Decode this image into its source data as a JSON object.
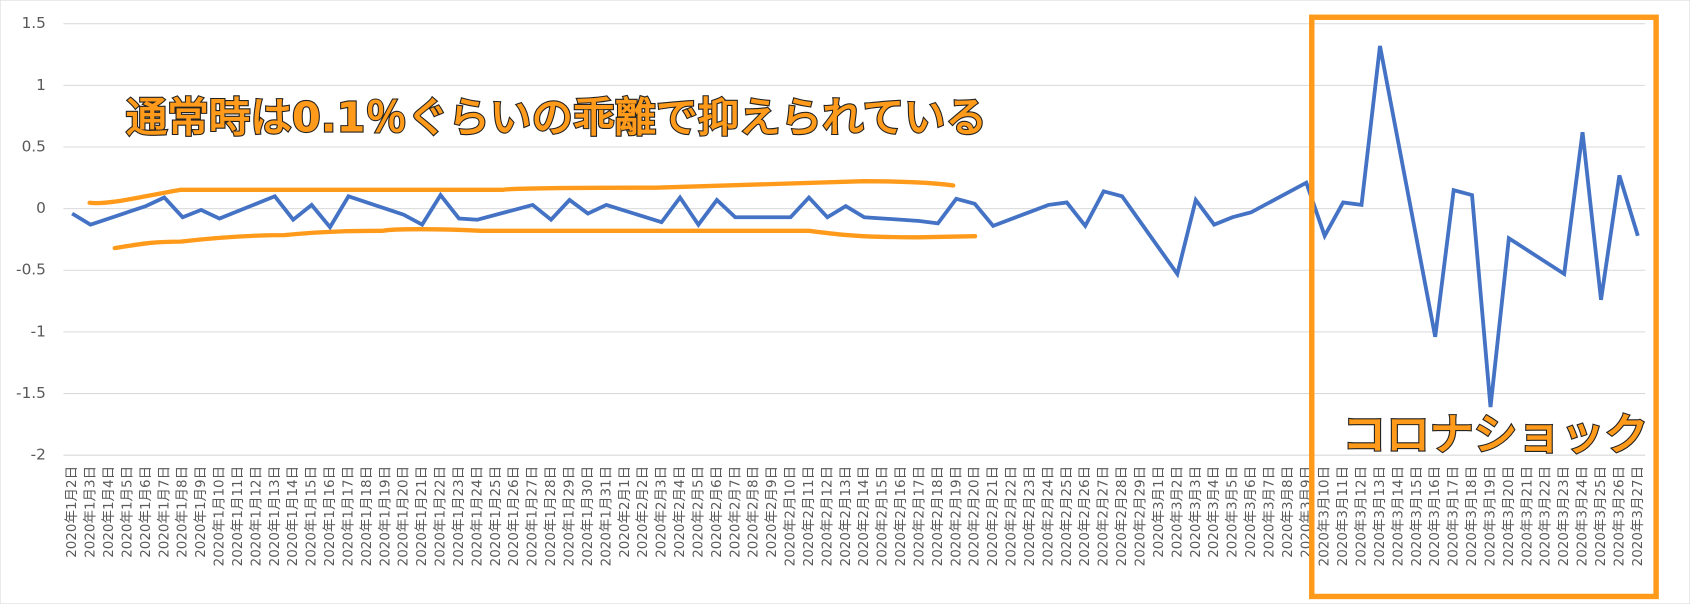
{
  "chart_data": {
    "type": "line",
    "categories": [
      "2020年1月2日",
      "2020年1月3日",
      "2020年1月4日",
      "2020年1月5日",
      "2020年1月6日",
      "2020年1月7日",
      "2020年1月8日",
      "2020年1月9日",
      "2020年1月10日",
      "2020年1月11日",
      "2020年1月12日",
      "2020年1月13日",
      "2020年1月14日",
      "2020年1月15日",
      "2020年1月16日",
      "2020年1月17日",
      "2020年1月18日",
      "2020年1月19日",
      "2020年1月20日",
      "2020年1月21日",
      "2020年1月22日",
      "2020年1月23日",
      "2020年1月24日",
      "2020年1月25日",
      "2020年1月26日",
      "2020年1月27日",
      "2020年1月28日",
      "2020年1月29日",
      "2020年1月30日",
      "2020年1月31日",
      "2020年2月1日",
      "2020年2月2日",
      "2020年2月3日",
      "2020年2月4日",
      "2020年2月5日",
      "2020年2月6日",
      "2020年2月7日",
      "2020年2月8日",
      "2020年2月9日",
      "2020年2月10日",
      "2020年2月11日",
      "2020年2月12日",
      "2020年2月13日",
      "2020年2月14日",
      "2020年2月15日",
      "2020年2月16日",
      "2020年2月17日",
      "2020年2月18日",
      "2020年2月19日",
      "2020年2月20日",
      "2020年2月21日",
      "2020年2月22日",
      "2020年2月23日",
      "2020年2月24日",
      "2020年2月25日",
      "2020年2月26日",
      "2020年2月27日",
      "2020年2月28日",
      "2020年2月29日",
      "2020年3月1日",
      "2020年3月2日",
      "2020年3月3日",
      "2020年3月4日",
      "2020年3月5日",
      "2020年3月6日",
      "2020年3月7日",
      "2020年3月8日",
      "2020年3月9日",
      "2020年3月10日",
      "2020年3月11日",
      "2020年3月12日",
      "2020年3月13日",
      "2020年3月14日",
      "2020年3月15日",
      "2020年3月16日",
      "2020年3月17日",
      "2020年3月18日",
      "2020年3月19日",
      "2020年3月20日",
      "2020年3月21日",
      "2020年3月22日",
      "2020年3月23日",
      "2020年3月24日",
      "2020年3月25日",
      "2020年3月26日",
      "2020年3月27日"
    ],
    "series": [
      {
        "color": "#4472c4",
        "x": [
          "2020年1月2日",
          "2020年1月3日",
          "2020年1月6日",
          "2020年1月7日",
          "2020年1月8日",
          "2020年1月9日",
          "2020年1月10日",
          "2020年1月13日",
          "2020年1月14日",
          "2020年1月15日",
          "2020年1月16日",
          "2020年1月17日",
          "2020年1月20日",
          "2020年1月21日",
          "2020年1月22日",
          "2020年1月23日",
          "2020年1月24日",
          "2020年1月27日",
          "2020年1月28日",
          "2020年1月29日",
          "2020年1月30日",
          "2020年1月31日",
          "2020年2月3日",
          "2020年2月4日",
          "2020年2月5日",
          "2020年2月6日",
          "2020年2月7日",
          "2020年2月10日",
          "2020年2月11日",
          "2020年2月12日",
          "2020年2月13日",
          "2020年2月14日",
          "2020年2月17日",
          "2020年2月18日",
          "2020年2月19日",
          "2020年2月20日",
          "2020年2月21日",
          "2020年2月24日",
          "2020年2月25日",
          "2020年2月26日",
          "2020年2月27日",
          "2020年2月28日",
          "2020年3月2日",
          "2020年3月3日",
          "2020年3月4日",
          "2020年3月5日",
          "2020年3月6日",
          "2020年3月9日",
          "2020年3月10日",
          "2020年3月11日",
          "2020年3月12日",
          "2020年3月13日",
          "2020年3月16日",
          "2020年3月17日",
          "2020年3月18日",
          "2020年3月19日",
          "2020年3月20日",
          "2020年3月23日",
          "2020年3月24日",
          "2020年3月25日",
          "2020年3月26日",
          "2020年3月27日"
        ],
        "values": [
          -0.04,
          -0.13,
          0.02,
          0.09,
          -0.07,
          -0.01,
          -0.08,
          0.1,
          -0.09,
          0.03,
          -0.15,
          0.1,
          -0.05,
          -0.13,
          0.11,
          -0.08,
          -0.09,
          0.03,
          -0.09,
          0.07,
          -0.04,
          0.03,
          -0.11,
          0.09,
          -0.13,
          0.07,
          -0.07,
          -0.07,
          0.09,
          -0.07,
          0.02,
          -0.07,
          -0.1,
          -0.12,
          0.08,
          0.04,
          -0.14,
          0.03,
          0.05,
          -0.14,
          0.14,
          0.1,
          -0.53,
          0.07,
          -0.13,
          -0.07,
          -0.03,
          0.21,
          -0.22,
          0.05,
          0.03,
          1.32,
          -1.04,
          0.15,
          0.11,
          -1.61,
          -0.24,
          -0.53,
          0.62,
          -0.74,
          0.27,
          -0.22
        ]
      }
    ],
    "ylim": [
      -2,
      1.5
    ],
    "yticks": [
      1.5,
      1,
      0.5,
      0,
      -0.5,
      -1,
      -1.5,
      -2
    ],
    "grid": true,
    "annotations": [
      "通常時は0.1％ぐらいの乖離で抑えられている",
      "コロナショック"
    ]
  }
}
